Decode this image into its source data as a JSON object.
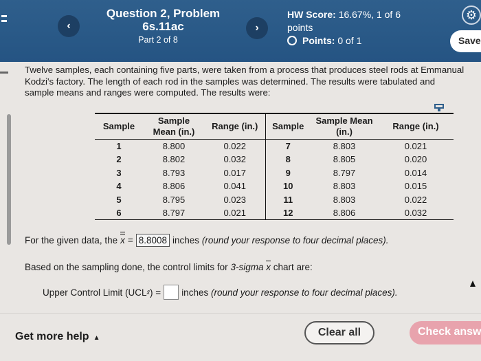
{
  "header": {
    "question_title": "Question 2, Problem 6s.11ac",
    "part": "Part 2 of 8",
    "hw_score_label": "HW Score:",
    "hw_score_value": "16.67%, 1 of 6 points",
    "points_label": "Points:",
    "points_value": "0 of 1",
    "save_label": "Save",
    "prev_glyph": "‹",
    "next_glyph": "›",
    "gear_glyph": "⚙"
  },
  "intro": "Twelve samples, each containing five parts, were taken from a process that produces steel rods at Emmanual Kodzi's factory. The length of each rod in the samples was determined. The results were tabulated and sample means and ranges were computed. The results were:",
  "table": {
    "headers": [
      "Sample",
      "Sample Mean (in.)",
      "Range (in.)",
      "Sample",
      "Sample Mean (in.)",
      "Range (in.)"
    ],
    "rows": [
      [
        "1",
        "8.800",
        "0.022",
        "7",
        "8.803",
        "0.021"
      ],
      [
        "2",
        "8.802",
        "0.032",
        "8",
        "8.805",
        "0.020"
      ],
      [
        "3",
        "8.793",
        "0.017",
        "9",
        "8.797",
        "0.014"
      ],
      [
        "4",
        "8.806",
        "0.041",
        "10",
        "8.803",
        "0.015"
      ],
      [
        "5",
        "8.795",
        "0.023",
        "11",
        "8.803",
        "0.022"
      ],
      [
        "6",
        "8.797",
        "0.021",
        "12",
        "8.806",
        "0.032"
      ]
    ]
  },
  "q1": {
    "prefix": "For the given data, the",
    "symbol": "x",
    "equals": "=",
    "answer": "8.8008",
    "suffix_plain": "inches",
    "suffix_italic": "(round your response to four decimal places)."
  },
  "q2": {
    "prefix": "Based on the sampling done, the control limits for",
    "italic": "3-sigma",
    "symbol": "x",
    "suffix": "chart are:"
  },
  "q3": {
    "label": "Upper Control Limit (UCL",
    "sub": "x̄",
    "close": ") =",
    "suffix_plain": "inches",
    "suffix_italic": "(round your response to four decimal places)."
  },
  "footer": {
    "get_help": "Get more help",
    "caret": "▲",
    "clear_all": "Clear all",
    "check_answer": "Check answer"
  }
}
